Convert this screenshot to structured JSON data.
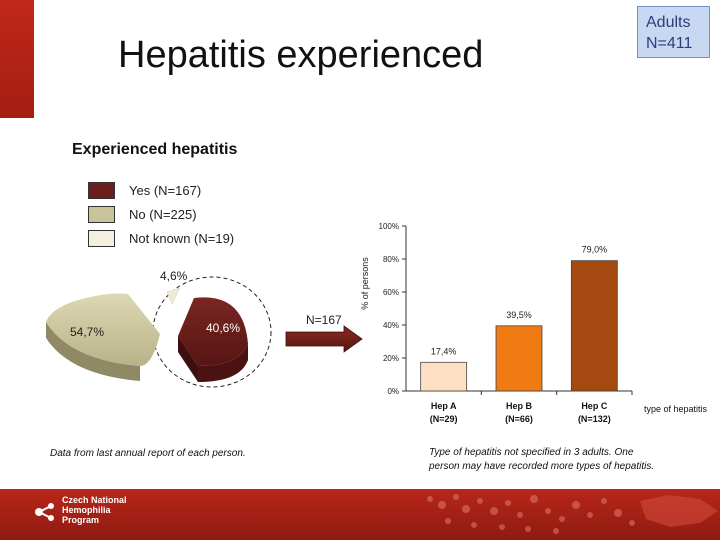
{
  "page": {
    "title": "Hepatitis experienced",
    "badge_line1": "Adults",
    "badge_line2": "N=411",
    "arrow_label": "N=167",
    "note_left": "Data from last annual report of each person.",
    "note_right_line1": "Type of hepatitis not specified in 3 adults. One",
    "note_right_line2": "person may have recorded more types of hepatitis.",
    "brand_line1": "Czech National",
    "brand_line2": "Hemophilia",
    "brand_line3": "Program"
  },
  "colors": {
    "accent": "#b8271a",
    "yes": "#6b1f1c",
    "no": "#c9c39a",
    "not_known": "#f3f0df",
    "hep_a": "#fde0c4",
    "hep_b": "#ef7b12",
    "hep_c": "#a4490f"
  },
  "chart_data": [
    {
      "type": "pie",
      "title": "Experienced hepatitis",
      "slices": [
        {
          "name": "Yes (N=167)",
          "value": 40.6,
          "label": "40,6%",
          "color": "#6b1f1c"
        },
        {
          "name": "No (N=225)",
          "value": 54.7,
          "label": "54,7%",
          "color": "#c9c39a"
        },
        {
          "name": "Not known (N=19)",
          "value": 4.6,
          "label": "4,6%",
          "color": "#f3f0df"
        }
      ]
    },
    {
      "type": "bar",
      "categories": [
        "Hep A",
        "Hep B",
        "Hep C"
      ],
      "category_sublabels": [
        "(N=29)",
        "(N=66)",
        "(N=132)"
      ],
      "values": [
        17.4,
        39.5,
        79.0
      ],
      "value_labels": [
        "17,4%",
        "39,5%",
        "79,0%"
      ],
      "colors": [
        "#fde0c4",
        "#ef7b12",
        "#a4490f"
      ],
      "ylabel": "% of persons",
      "xlabel": "type of hepatitis",
      "ylim": [
        0,
        100
      ],
      "yticks": [
        0,
        20,
        40,
        60,
        80,
        100
      ],
      "ytick_labels": [
        "0%",
        "20%",
        "40%",
        "60%",
        "80%",
        "100%"
      ],
      "grid": false
    }
  ]
}
